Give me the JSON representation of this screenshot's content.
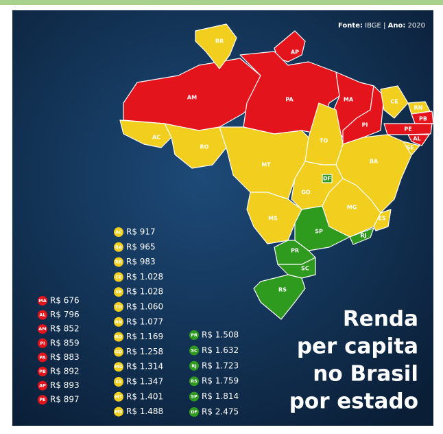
{
  "source": {
    "fonte_label": "Fonte:",
    "fonte": "IBGE",
    "separator": "|",
    "ano_label": "Ano:",
    "ano": "2020"
  },
  "title": [
    "Renda",
    "per capita",
    "no Brasil",
    "por estado"
  ],
  "legend": {
    "groups": [
      {
        "color": "#e3141b",
        "entries": [
          {
            "code": "MA",
            "value": "R$ 676"
          },
          {
            "code": "AL",
            "value": "R$ 796"
          },
          {
            "code": "AM",
            "value": "R$ 852"
          },
          {
            "code": "PI",
            "value": "R$ 859"
          },
          {
            "code": "PA",
            "value": "R$ 883"
          },
          {
            "code": "PB",
            "value": "R$ 892"
          },
          {
            "code": "AP",
            "value": "R$ 893"
          },
          {
            "code": "PE",
            "value": "R$ 897"
          }
        ]
      },
      {
        "color": "#f2cf1f",
        "entries": [
          {
            "code": "AC",
            "value": "R$ 917"
          },
          {
            "code": "BA",
            "value": "R$ 965"
          },
          {
            "code": "RR",
            "value": "R$ 983"
          },
          {
            "code": "CE",
            "value": "R$ 1.028"
          },
          {
            "code": "SE",
            "value": "R$ 1.028"
          },
          {
            "code": "TO",
            "value": "R$ 1.060"
          },
          {
            "code": "RN",
            "value": "R$ 1.077"
          },
          {
            "code": "RO",
            "value": "R$ 1.169"
          },
          {
            "code": "GO",
            "value": "R$ 1.258"
          },
          {
            "code": "MG",
            "value": "R$ 1.314"
          },
          {
            "code": "ES",
            "value": "R$ 1.347"
          },
          {
            "code": "MT",
            "value": "R$ 1.401"
          },
          {
            "code": "MS",
            "value": "R$ 1.488"
          }
        ]
      },
      {
        "color": "#2e9a1e",
        "entries": [
          {
            "code": "PR",
            "value": "R$ 1.508"
          },
          {
            "code": "SC",
            "value": "R$ 1.632"
          },
          {
            "code": "RJ",
            "value": "R$ 1.723"
          },
          {
            "code": "RS",
            "value": "R$ 1.759"
          },
          {
            "code": "SP",
            "value": "R$ 1.814"
          },
          {
            "code": "DF",
            "value": "R$ 2.475"
          }
        ]
      }
    ]
  }
}
